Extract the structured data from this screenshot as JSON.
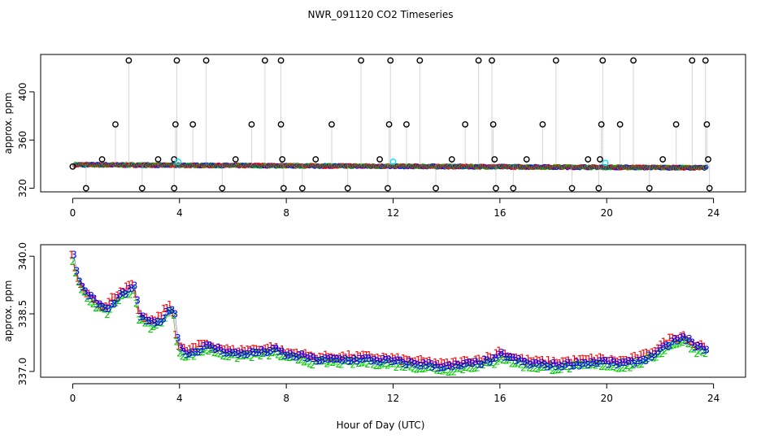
{
  "figure": {
    "title": "NWR_091120  CO2 Timeseries",
    "xlabel": "Hour of Day (UTC)"
  },
  "chart_data": [
    {
      "type": "scatter",
      "panel": "top",
      "title": "NWR_091120  CO2 Timeseries",
      "ylabel": "approx. ppm",
      "xlabel": "",
      "xlim": [
        -1.2,
        25.2
      ],
      "ylim": [
        317,
        431
      ],
      "xticks": [
        "0",
        "4",
        "8",
        "12",
        "16",
        "20",
        "24"
      ],
      "yticks": [
        "320",
        "360",
        "400"
      ],
      "baseline_series": [
        {
          "name": "series-1",
          "color": "#ff0000"
        },
        {
          "name": "series-2",
          "color": "#00cc00"
        },
        {
          "name": "series-3",
          "color": "#0000ff"
        }
      ],
      "baseline_x": [
        0.1,
        23.7
      ],
      "baseline_y": [
        339.5,
        337
      ],
      "spike_points": [
        {
          "x": 0.0,
          "y": 338
        },
        {
          "x": 0.5,
          "y": 320
        },
        {
          "x": 1.1,
          "y": 344
        },
        {
          "x": 1.6,
          "y": 373
        },
        {
          "x": 2.1,
          "y": 426
        },
        {
          "x": 2.6,
          "y": 320
        },
        {
          "x": 3.2,
          "y": 344
        },
        {
          "x": 3.8,
          "y": 320
        },
        {
          "x": 3.8,
          "y": 344
        },
        {
          "x": 3.85,
          "y": 373
        },
        {
          "x": 3.9,
          "y": 426
        },
        {
          "x": 4.5,
          "y": 373
        },
        {
          "x": 5.0,
          "y": 426
        },
        {
          "x": 5.6,
          "y": 320
        },
        {
          "x": 6.1,
          "y": 344
        },
        {
          "x": 6.7,
          "y": 373
        },
        {
          "x": 7.2,
          "y": 426
        },
        {
          "x": 7.8,
          "y": 426
        },
        {
          "x": 7.8,
          "y": 373
        },
        {
          "x": 7.85,
          "y": 344
        },
        {
          "x": 7.9,
          "y": 320
        },
        {
          "x": 8.6,
          "y": 320
        },
        {
          "x": 9.1,
          "y": 344
        },
        {
          "x": 9.7,
          "y": 373
        },
        {
          "x": 10.3,
          "y": 320
        },
        {
          "x": 10.8,
          "y": 426
        },
        {
          "x": 11.5,
          "y": 344
        },
        {
          "x": 11.8,
          "y": 320
        },
        {
          "x": 11.85,
          "y": 373
        },
        {
          "x": 11.9,
          "y": 426
        },
        {
          "x": 12.5,
          "y": 373
        },
        {
          "x": 13.0,
          "y": 426
        },
        {
          "x": 13.6,
          "y": 320
        },
        {
          "x": 14.2,
          "y": 344
        },
        {
          "x": 14.7,
          "y": 373
        },
        {
          "x": 15.2,
          "y": 426
        },
        {
          "x": 15.7,
          "y": 426
        },
        {
          "x": 15.75,
          "y": 373
        },
        {
          "x": 15.8,
          "y": 344
        },
        {
          "x": 15.85,
          "y": 320
        },
        {
          "x": 16.5,
          "y": 320
        },
        {
          "x": 17.0,
          "y": 344
        },
        {
          "x": 17.6,
          "y": 373
        },
        {
          "x": 18.1,
          "y": 426
        },
        {
          "x": 18.7,
          "y": 320
        },
        {
          "x": 19.3,
          "y": 344
        },
        {
          "x": 19.7,
          "y": 320
        },
        {
          "x": 19.75,
          "y": 344
        },
        {
          "x": 19.8,
          "y": 373
        },
        {
          "x": 19.85,
          "y": 426
        },
        {
          "x": 20.5,
          "y": 373
        },
        {
          "x": 21.0,
          "y": 426
        },
        {
          "x": 21.6,
          "y": 320
        },
        {
          "x": 22.1,
          "y": 344
        },
        {
          "x": 22.6,
          "y": 373
        },
        {
          "x": 23.2,
          "y": 426
        },
        {
          "x": 23.7,
          "y": 426
        },
        {
          "x": 23.75,
          "y": 373
        },
        {
          "x": 23.8,
          "y": 344
        },
        {
          "x": 23.85,
          "y": 320
        }
      ],
      "cyan_points": [
        {
          "x": 3.95,
          "y": 342
        },
        {
          "x": 12.0,
          "y": 342
        },
        {
          "x": 19.95,
          "y": 341
        }
      ],
      "colors": {
        "spike": "#000000",
        "connector": "#aaaaaa",
        "cyan": "#00e5ff"
      }
    },
    {
      "type": "scatter",
      "panel": "bottom",
      "title": "",
      "ylabel": "approx. ppm",
      "xlabel": "Hour of Day (UTC)",
      "xlim": [
        -1.2,
        25.2
      ],
      "ylim": [
        336.85,
        340.3
      ],
      "xticks": [
        "0",
        "4",
        "8",
        "12",
        "16",
        "20",
        "24"
      ],
      "yticks": [
        "337.0",
        "338.5",
        "340.0"
      ],
      "series": [
        {
          "name": "1",
          "color": "#ff0000",
          "offset": 0.08
        },
        {
          "name": "2",
          "color": "#00cc00",
          "offset": -0.08
        },
        {
          "name": "3",
          "color": "#0000ff",
          "offset": 0.0
        }
      ],
      "profile_x": [
        0,
        0.1,
        0.3,
        0.6,
        1.0,
        1.3,
        1.5,
        1.8,
        2.1,
        2.3,
        2.5,
        2.8,
        3.0,
        3.3,
        3.6,
        3.75,
        3.95,
        4.3,
        5.0,
        5.5,
        6.0,
        7.0,
        7.6,
        8.0,
        8.5,
        9.0,
        10.0,
        11.0,
        12.0,
        12.7,
        13.5,
        14.0,
        15.0,
        15.8,
        16.0,
        16.3,
        17.0,
        18.0,
        19.0,
        19.8,
        20.2,
        20.8,
        21.5,
        22.0,
        22.5,
        23.0,
        23.3,
        23.7
      ],
      "profile_y": [
        340.0,
        339.6,
        339.2,
        338.95,
        338.7,
        338.6,
        338.8,
        339.0,
        339.1,
        339.2,
        338.4,
        338.3,
        338.2,
        338.35,
        338.6,
        338.7,
        337.6,
        337.45,
        337.65,
        337.55,
        337.45,
        337.5,
        337.55,
        337.4,
        337.4,
        337.3,
        337.3,
        337.3,
        337.25,
        337.2,
        337.15,
        337.1,
        337.2,
        337.3,
        337.45,
        337.35,
        337.2,
        337.15,
        337.2,
        337.25,
        337.2,
        337.2,
        337.35,
        337.55,
        337.8,
        337.85,
        337.6,
        337.6
      ],
      "spread": 0.12
    }
  ]
}
